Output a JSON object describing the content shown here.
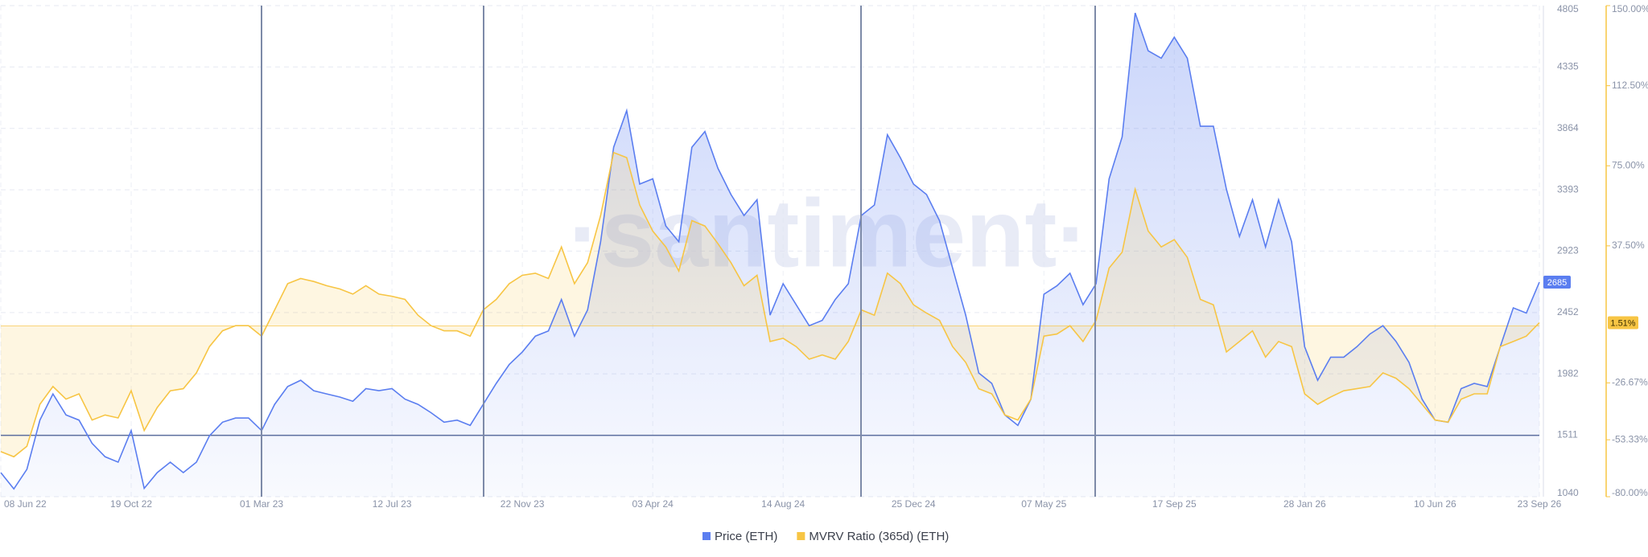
{
  "chart_data": {
    "type": "line",
    "watermark": "·santiment·",
    "categories": [
      "08 Jun 22",
      null,
      null,
      null,
      null,
      null,
      null,
      null,
      null,
      null,
      "19 Oct 22",
      null,
      null,
      null,
      null,
      null,
      null,
      null,
      null,
      null,
      "01 Mar 23",
      null,
      null,
      null,
      null,
      null,
      null,
      null,
      null,
      null,
      "12 Jul 23",
      null,
      null,
      null,
      null,
      null,
      null,
      null,
      null,
      null,
      "22 Nov 23",
      null,
      null,
      null,
      null,
      null,
      null,
      null,
      null,
      null,
      "03 Apr 24",
      null,
      null,
      null,
      null,
      null,
      null,
      null,
      null,
      null,
      "14 Aug 24",
      null,
      null,
      null,
      null,
      null,
      null,
      null,
      null,
      null,
      "25 Dec 24",
      null,
      null,
      null,
      null,
      null,
      null,
      null,
      null,
      null,
      "07 May 25",
      null,
      null,
      null,
      null,
      null,
      null,
      null,
      null,
      null,
      "17 Sep 25",
      null,
      null,
      null,
      null,
      null,
      null,
      null,
      null,
      null,
      "28 Jan 26",
      null,
      null,
      null,
      null,
      null,
      null,
      null,
      null,
      null,
      "10 Jun 26",
      null,
      null,
      null,
      null,
      null,
      null,
      null,
      "23 Sep 26"
    ],
    "series": [
      {
        "name": "Price (ETH)",
        "color": "#5b7ef0",
        "axis": "y",
        "values": [
          1225,
          1100,
          1250,
          1627,
          1828,
          1667,
          1627,
          1450,
          1346,
          1305,
          1547,
          1104,
          1225,
          1305,
          1225,
          1305,
          1507,
          1611,
          1643,
          1643,
          1547,
          1748,
          1885,
          1933,
          1853,
          1828,
          1804,
          1772,
          1869,
          1853,
          1869,
          1788,
          1748,
          1684,
          1611,
          1627,
          1587,
          1748,
          1909,
          2054,
          2150,
          2271,
          2311,
          2552,
          2271,
          2472,
          2995,
          3719,
          4000,
          3437,
          3477,
          3116,
          2995,
          3719,
          3840,
          3558,
          3357,
          3196,
          3317,
          2432,
          2673,
          2512,
          2351,
          2392,
          2552,
          2673,
          3196,
          3276,
          3815,
          3638,
          3437,
          3357,
          3156,
          2794,
          2432,
          1989,
          1909,
          1667,
          1587,
          1788,
          2592,
          2657,
          2753,
          2512,
          2673,
          3477,
          3799,
          4749,
          4459,
          4402,
          4563,
          4402,
          3880,
          3880,
          3397,
          3035,
          3317,
          2955,
          3317,
          2995,
          2190,
          1933,
          2110,
          2110,
          2190,
          2287,
          2351,
          2231,
          2070,
          1788,
          1627,
          1611,
          1869,
          1909,
          1885,
          2190,
          2488,
          2448,
          2685
        ]
      },
      {
        "name": "MVRV Ratio (365d) (ETH)",
        "color": "#f7c544",
        "axis": "y2",
        "last_label": "1.51%",
        "values": [
          -58.9,
          -61.3,
          -56.4,
          -36.7,
          -28.4,
          -34.3,
          -31.8,
          -44.1,
          -41.7,
          -43.1,
          -30.4,
          -49.0,
          -38.2,
          -30.4,
          -29.4,
          -22.0,
          -9.7,
          -2.3,
          0.1,
          0.1,
          -4.8,
          7.5,
          19.8,
          22.2,
          20.8,
          18.8,
          17.3,
          14.9,
          18.8,
          14.9,
          13.9,
          12.4,
          5.0,
          0.1,
          -2.3,
          -2.3,
          -4.8,
          7.5,
          12.4,
          19.8,
          23.7,
          24.7,
          22.2,
          37.0,
          19.8,
          29.6,
          51.7,
          81.2,
          78.8,
          56.6,
          44.4,
          37.0,
          25.7,
          49.3,
          46.8,
          38.5,
          29.6,
          18.8,
          23.7,
          -7.3,
          -5.8,
          -9.7,
          -15.6,
          -13.6,
          -15.6,
          -7.3,
          7.5,
          5.0,
          24.7,
          19.8,
          9.9,
          6.0,
          2.6,
          -9.7,
          -17.1,
          -29.4,
          -31.8,
          -41.7,
          -44.1,
          -34.3,
          -4.8,
          -3.8,
          0.1,
          -7.3,
          2.6,
          27.1,
          34.5,
          64.0,
          44.4,
          37.0,
          40.4,
          32.1,
          12.4,
          9.9,
          -12.2,
          -7.3,
          -2.3,
          -14.6,
          -7.3,
          -9.7,
          -31.8,
          -36.7,
          -33.3,
          -30.4,
          -29.4,
          -28.4,
          -22.0,
          -24.5,
          -29.4,
          -36.7,
          -44.1,
          -45.1,
          -34.3,
          -31.8,
          -31.8,
          -9.7,
          -7.3,
          -4.8,
          1.51
        ]
      }
    ],
    "ylim": [
      1040,
      4805
    ],
    "yticks": [
      1040,
      1511,
      1982,
      2452,
      2923,
      3393,
      3864,
      4335,
      4805
    ],
    "y2lim": [
      -80,
      150
    ],
    "y2ticks": [
      {
        "value": -80,
        "label": "-80.00%"
      },
      {
        "value": -53.33,
        "label": "-53.33%"
      },
      {
        "value": -26.67,
        "label": "-26.67%"
      },
      {
        "value": 37.5,
        "label": "37.50%"
      },
      {
        "value": 75,
        "label": "75.00%"
      },
      {
        "value": 112.5,
        "label": "112.50%"
      },
      {
        "value": 150,
        "label": "150.00%"
      }
    ],
    "hline": 1511,
    "grid": true
  }
}
